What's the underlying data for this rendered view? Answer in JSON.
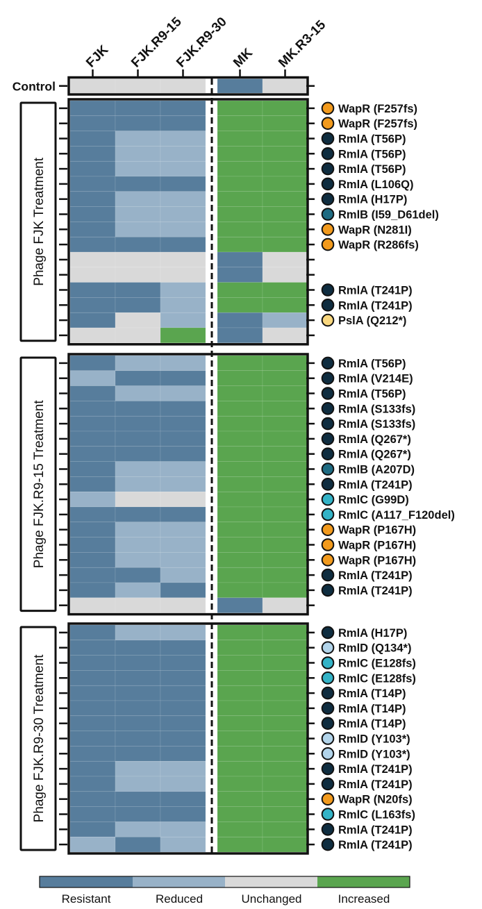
{
  "chart_data": {
    "type": "heatmap",
    "columns": [
      "FJK",
      "FJK.R9-15",
      "FJK.R9-30",
      "MK",
      "MK.R3-15"
    ],
    "legend": {
      "levels": [
        "Resistant",
        "Reduced",
        "Unchanged",
        "Increased"
      ],
      "colors": [
        "#577d9c",
        "#98b2c8",
        "#d9d9d9",
        "#5aa54f"
      ]
    },
    "control": {
      "label": "Control",
      "values": [
        "U",
        "U",
        "U",
        "R",
        "U"
      ]
    },
    "groups": [
      {
        "label": "Phage FJK Treatment",
        "rows": [
          {
            "values": [
              "R",
              "R",
              "R",
              "I",
              "I"
            ],
            "mutation": "WapR (F257fs)",
            "gene": "WapR"
          },
          {
            "values": [
              "R",
              "R",
              "R",
              "I",
              "I"
            ],
            "mutation": "WapR (F257fs)",
            "gene": "WapR"
          },
          {
            "values": [
              "R",
              "D",
              "D",
              "I",
              "I"
            ],
            "mutation": "RmlA (T56P)",
            "gene": "RmlA"
          },
          {
            "values": [
              "R",
              "D",
              "D",
              "I",
              "I"
            ],
            "mutation": "RmlA (T56P)",
            "gene": "RmlA"
          },
          {
            "values": [
              "R",
              "D",
              "D",
              "I",
              "I"
            ],
            "mutation": "RmlA (T56P)",
            "gene": "RmlA"
          },
          {
            "values": [
              "R",
              "R",
              "R",
              "I",
              "I"
            ],
            "mutation": "RmlA (L106Q)",
            "gene": "RmlA"
          },
          {
            "values": [
              "R",
              "D",
              "D",
              "I",
              "I"
            ],
            "mutation": "RmlA (H17P)",
            "gene": "RmlA"
          },
          {
            "values": [
              "R",
              "D",
              "D",
              "I",
              "I"
            ],
            "mutation": "RmlB (I59_D61del)",
            "gene": "RmlB"
          },
          {
            "values": [
              "R",
              "D",
              "D",
              "I",
              "I"
            ],
            "mutation": "WapR (N281I)",
            "gene": "WapR"
          },
          {
            "values": [
              "R",
              "R",
              "R",
              "I",
              "I"
            ],
            "mutation": "WapR (R286fs)",
            "gene": "WapR"
          },
          {
            "values": [
              "U",
              "U",
              "U",
              "R",
              "U"
            ],
            "mutation": "",
            "gene": ""
          },
          {
            "values": [
              "U",
              "U",
              "U",
              "R",
              "U"
            ],
            "mutation": "",
            "gene": ""
          },
          {
            "values": [
              "R",
              "R",
              "D",
              "I",
              "I"
            ],
            "mutation": "RmlA (T241P)",
            "gene": "RmlA"
          },
          {
            "values": [
              "R",
              "R",
              "D",
              "I",
              "I"
            ],
            "mutation": "RmlA (T241P)",
            "gene": "RmlA"
          },
          {
            "values": [
              "R",
              "U",
              "D",
              "R",
              "D"
            ],
            "mutation": "PslA (Q212*)",
            "gene": "PslA"
          },
          {
            "values": [
              "U",
              "U",
              "I",
              "R",
              "U"
            ],
            "mutation": "",
            "gene": ""
          }
        ]
      },
      {
        "label": "Phage FJK.R9-15 Treatment",
        "rows": [
          {
            "values": [
              "R",
              "D",
              "D",
              "I",
              "I"
            ],
            "mutation": "RmlA (T56P)",
            "gene": "RmlA"
          },
          {
            "values": [
              "D",
              "R",
              "R",
              "I",
              "I"
            ],
            "mutation": "RmlA (V214E)",
            "gene": "RmlA"
          },
          {
            "values": [
              "R",
              "D",
              "D",
              "I",
              "I"
            ],
            "mutation": "RmlA (T56P)",
            "gene": "RmlA"
          },
          {
            "values": [
              "R",
              "R",
              "R",
              "I",
              "I"
            ],
            "mutation": "RmlA (S133fs)",
            "gene": "RmlA"
          },
          {
            "values": [
              "R",
              "R",
              "R",
              "I",
              "I"
            ],
            "mutation": "RmlA (S133fs)",
            "gene": "RmlA"
          },
          {
            "values": [
              "R",
              "R",
              "R",
              "I",
              "I"
            ],
            "mutation": "RmlA (Q267*)",
            "gene": "RmlA"
          },
          {
            "values": [
              "R",
              "R",
              "R",
              "I",
              "I"
            ],
            "mutation": "RmlA (Q267*)",
            "gene": "RmlA"
          },
          {
            "values": [
              "R",
              "D",
              "D",
              "I",
              "I"
            ],
            "mutation": "RmlB (A207D)",
            "gene": "RmlB"
          },
          {
            "values": [
              "R",
              "D",
              "D",
              "I",
              "I"
            ],
            "mutation": "RmlA (T241P)",
            "gene": "RmlA"
          },
          {
            "values": [
              "D",
              "U",
              "U",
              "I",
              "I"
            ],
            "mutation": "RmlC (G99D)",
            "gene": "RmlC"
          },
          {
            "values": [
              "R",
              "R",
              "R",
              "I",
              "I"
            ],
            "mutation": "RmlC (A117_F120del)",
            "gene": "RmlC"
          },
          {
            "values": [
              "R",
              "D",
              "D",
              "I",
              "I"
            ],
            "mutation": "WapR (P167H)",
            "gene": "WapR"
          },
          {
            "values": [
              "R",
              "D",
              "D",
              "I",
              "I"
            ],
            "mutation": "WapR (P167H)",
            "gene": "WapR"
          },
          {
            "values": [
              "R",
              "D",
              "D",
              "I",
              "I"
            ],
            "mutation": "WapR (P167H)",
            "gene": "WapR"
          },
          {
            "values": [
              "R",
              "R",
              "D",
              "I",
              "I"
            ],
            "mutation": "RmlA (T241P)",
            "gene": "RmlA"
          },
          {
            "values": [
              "R",
              "D",
              "R",
              "I",
              "I"
            ],
            "mutation": "RmlA (T241P)",
            "gene": "RmlA"
          },
          {
            "values": [
              "U",
              "U",
              "U",
              "R",
              "U"
            ],
            "mutation": "",
            "gene": ""
          }
        ]
      },
      {
        "label": "Phage FJK.R9-30 Treatment",
        "rows": [
          {
            "values": [
              "R",
              "D",
              "D",
              "I",
              "I"
            ],
            "mutation": "RmlA (H17P)",
            "gene": "RmlA"
          },
          {
            "values": [
              "R",
              "R",
              "R",
              "I",
              "I"
            ],
            "mutation": "RmlD (Q134*)",
            "gene": "RmlD"
          },
          {
            "values": [
              "R",
              "R",
              "R",
              "I",
              "I"
            ],
            "mutation": "RmlC (E128fs)",
            "gene": "RmlC"
          },
          {
            "values": [
              "R",
              "R",
              "R",
              "I",
              "I"
            ],
            "mutation": "RmlC (E128fs)",
            "gene": "RmlC"
          },
          {
            "values": [
              "R",
              "R",
              "R",
              "I",
              "I"
            ],
            "mutation": "RmlA (T14P)",
            "gene": "RmlA"
          },
          {
            "values": [
              "R",
              "R",
              "R",
              "I",
              "I"
            ],
            "mutation": "RmlA (T14P)",
            "gene": "RmlA"
          },
          {
            "values": [
              "R",
              "R",
              "R",
              "I",
              "I"
            ],
            "mutation": "RmlA (T14P)",
            "gene": "RmlA"
          },
          {
            "values": [
              "R",
              "R",
              "R",
              "I",
              "I"
            ],
            "mutation": "RmlD (Y103*)",
            "gene": "RmlD"
          },
          {
            "values": [
              "R",
              "R",
              "R",
              "I",
              "I"
            ],
            "mutation": "RmlD (Y103*)",
            "gene": "RmlD"
          },
          {
            "values": [
              "R",
              "D",
              "D",
              "I",
              "I"
            ],
            "mutation": "RmlA (T241P)",
            "gene": "RmlA"
          },
          {
            "values": [
              "R",
              "D",
              "D",
              "I",
              "I"
            ],
            "mutation": "RmlA (T241P)",
            "gene": "RmlA"
          },
          {
            "values": [
              "R",
              "R",
              "R",
              "I",
              "I"
            ],
            "mutation": "WapR (N20fs)",
            "gene": "WapR"
          },
          {
            "values": [
              "R",
              "R",
              "R",
              "I",
              "I"
            ],
            "mutation": "RmlC (L163fs)",
            "gene": "RmlC"
          },
          {
            "values": [
              "R",
              "D",
              "D",
              "I",
              "I"
            ],
            "mutation": "RmlA (T241P)",
            "gene": "RmlA"
          },
          {
            "values": [
              "D",
              "R",
              "D",
              "I",
              "I"
            ],
            "mutation": "RmlA (T241P)",
            "gene": "RmlA"
          }
        ]
      }
    ],
    "gene_colors": {
      "RmlA": "#0f2d40",
      "RmlB": "#1e6b82",
      "RmlC": "#33b3c7",
      "RmlD": "#b2d4ea",
      "WapR": "#f29a1d",
      "PslA": "#f9d77e"
    }
  }
}
